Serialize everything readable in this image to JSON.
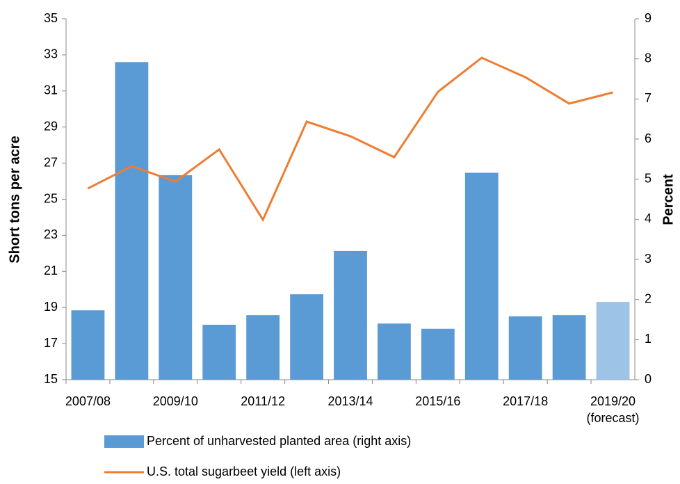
{
  "chart_data": {
    "type": "bar-line",
    "categories": [
      "2007/08",
      null,
      "2009/10",
      null,
      "2011/12",
      null,
      "2013/14",
      null,
      "2015/16",
      null,
      "2017/18",
      null,
      "2019/20 (forecast)"
    ],
    "y_label": "Short tons per acre",
    "y2_label": "Percent",
    "ylim": [
      15,
      35
    ],
    "yticks": [
      15,
      17,
      19,
      21,
      23,
      25,
      27,
      29,
      31,
      33,
      35
    ],
    "y2lim": [
      0,
      9
    ],
    "y2ticks": [
      0,
      1,
      2,
      3,
      4,
      5,
      6,
      7,
      8,
      9
    ],
    "series": [
      {
        "name": "Percent of unharvested planted area (right axis)",
        "type": "bar",
        "axis": "y2",
        "color": "#5b9bd5",
        "colors": [
          "#5b9bd5",
          "#5b9bd5",
          "#5b9bd5",
          "#5b9bd5",
          "#5b9bd5",
          "#5b9bd5",
          "#5b9bd5",
          "#5b9bd5",
          "#5b9bd5",
          "#5b9bd5",
          "#5b9bd5",
          "#5b9bd5",
          "#9dc3e6"
        ],
        "values": [
          1.73,
          7.92,
          5.1,
          1.37,
          1.61,
          2.13,
          3.21,
          1.4,
          1.27,
          5.16,
          1.58,
          1.61,
          1.94
        ]
      },
      {
        "name": "U.S. total sugarbeet yield (left axis)",
        "type": "line",
        "color": "#ed7d31",
        "values": [
          25.6,
          26.83,
          25.98,
          27.76,
          23.86,
          29.3,
          28.49,
          27.33,
          30.95,
          32.84,
          31.76,
          30.3,
          30.92
        ]
      }
    ]
  }
}
